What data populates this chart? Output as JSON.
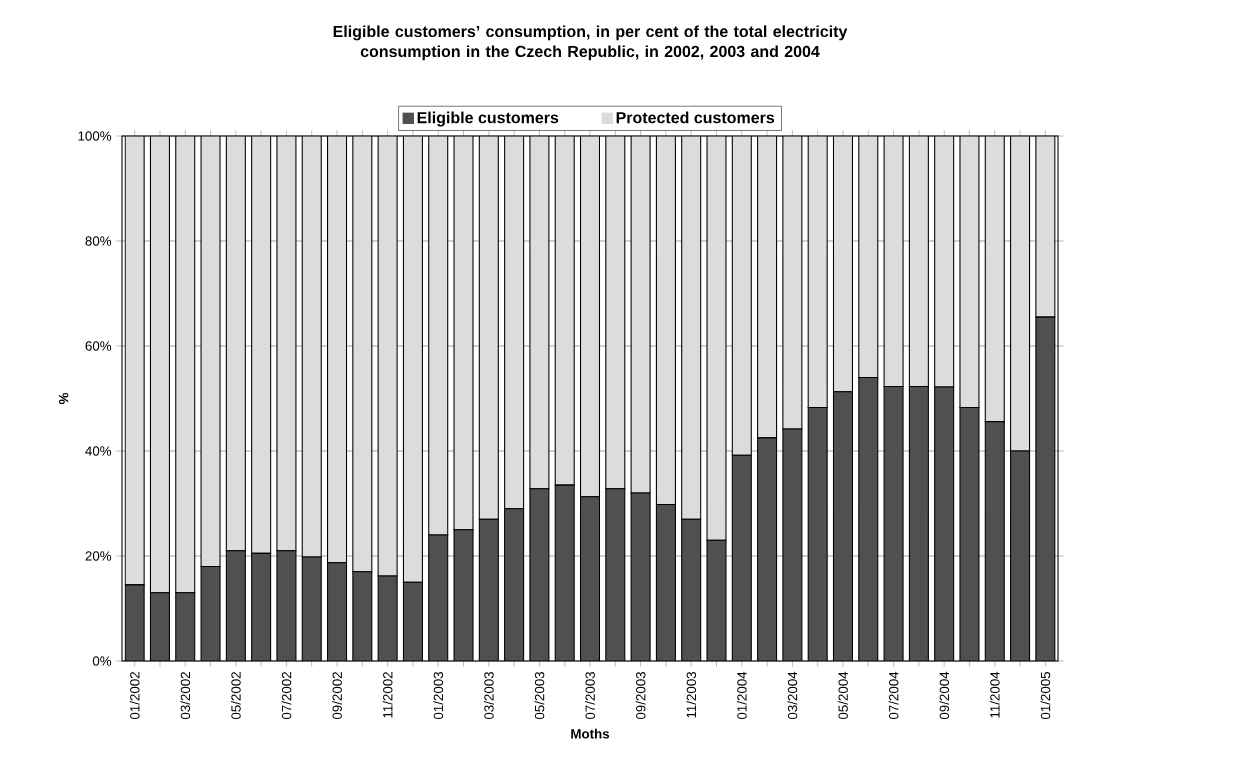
{
  "chart_data": {
    "type": "bar",
    "title": "Eligible customers’ consumption, in per cent of the total electricity consumption in the Czech Republic, in 2002, 2003 and 2004",
    "xlabel": "Moths",
    "ylabel": "%",
    "categories": [
      "01/2002",
      null,
      "03/2002",
      null,
      "05/2002",
      null,
      "07/2002",
      null,
      "09/2002",
      null,
      "11/2002",
      null,
      "01/2003",
      null,
      "03/2003",
      null,
      "05/2003",
      null,
      "07/2003",
      null,
      "09/2003",
      null,
      "11/2003",
      null,
      "01/2004",
      null,
      "03/2004",
      null,
      "05/2004",
      null,
      "07/2004",
      null,
      "09/2004",
      null,
      "11/2004",
      null,
      "01/2005"
    ],
    "stacked": true,
    "series": [
      {
        "name": "Eligible customers",
        "color": "#505050",
        "values": [
          14.5,
          13,
          13,
          18,
          21,
          20.5,
          21,
          19.8,
          18.7,
          17,
          16.2,
          15,
          24,
          25,
          27,
          29,
          32.8,
          33.5,
          31.3,
          32.8,
          32,
          29.8,
          27,
          23,
          39.2,
          42.5,
          44.2,
          48.3,
          51.3,
          54,
          52.3,
          52.3,
          52.2,
          48.3,
          45.6,
          40,
          65.5
        ]
      },
      {
        "name": "Protected customers",
        "color": "#dcdcdc",
        "values": [
          85.5,
          87,
          87,
          82,
          79,
          79.5,
          79,
          80.2,
          81.3,
          83,
          83.8,
          85,
          76,
          75,
          73,
          71,
          67.2,
          66.5,
          68.7,
          67.2,
          68,
          70.2,
          73,
          77,
          60.8,
          57.5,
          55.8,
          51.7,
          48.7,
          46,
          47.7,
          47.7,
          47.8,
          51.7,
          54.4,
          60,
          34.5
        ]
      }
    ],
    "ylim": [
      0,
      100
    ],
    "yticks": [
      {
        "value": 0,
        "label": "0%"
      },
      {
        "value": 20,
        "label": "20%"
      },
      {
        "value": 40,
        "label": "40%"
      },
      {
        "value": 60,
        "label": "60%"
      },
      {
        "value": 80,
        "label": "80%"
      },
      {
        "value": 100,
        "label": "100%"
      }
    ],
    "grid": "y",
    "legend": "top"
  }
}
